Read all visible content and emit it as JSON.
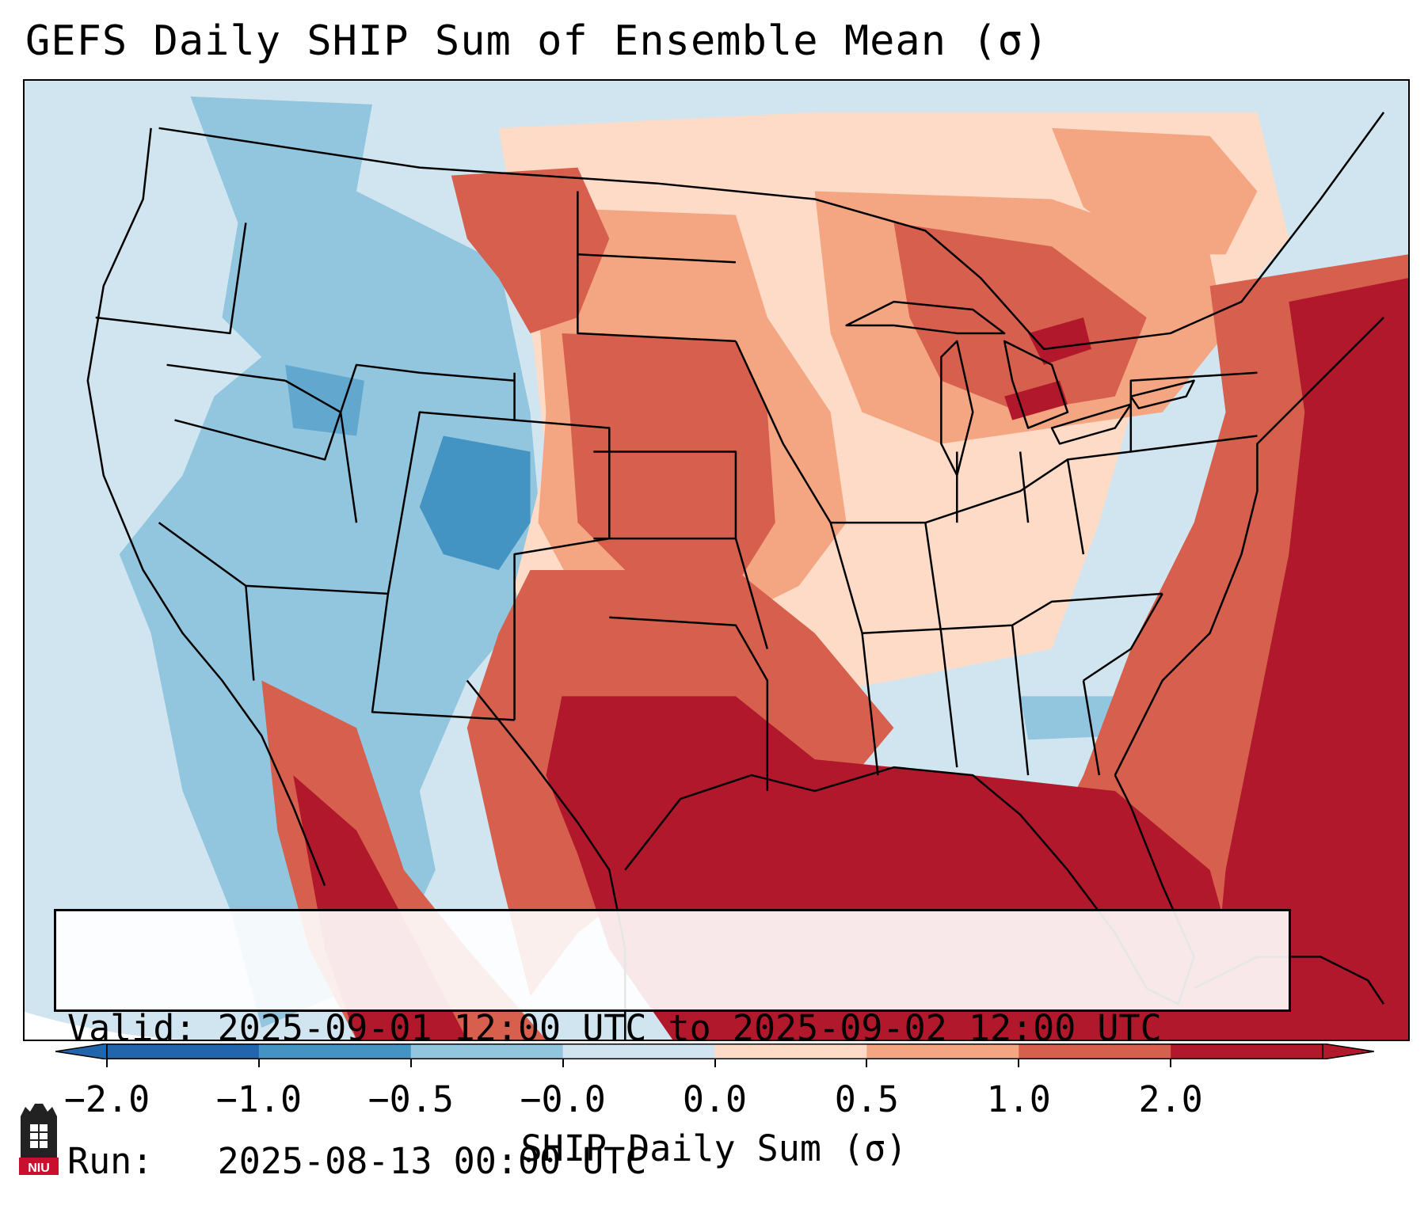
{
  "title": "GEFS Daily SHIP Sum of Ensemble Mean (σ)",
  "info": {
    "valid": "Valid: 2025-09-01 12:00 UTC to 2025-09-02 12:00 UTC",
    "run": "Run:   2025-08-13 00:00 UTC"
  },
  "colorbar": {
    "label": "SHIP Daily Sum (σ)",
    "ticks": [
      "−2.0",
      "−1.0",
      "−0.5",
      "−0.0",
      "0.0",
      "0.5",
      "1.0",
      "2.0"
    ],
    "bins": [
      "#2166ac",
      "#4393c3",
      "#92c5de",
      "#d1e5f0",
      "#fddbc7",
      "#f4a582",
      "#d6604d",
      "#b2182b"
    ],
    "extend_low_color": "#2166ac",
    "extend_high_color": "#b2182b"
  },
  "palette": {
    "strong_low": "#2166ac",
    "low": "#4393c3",
    "mid_low": "#92c5de",
    "near_neutral_low": "#d1e5f0",
    "near_neutral_high": "#fddbc7",
    "mid_high": "#f4a582",
    "high": "#d6604d",
    "strong_high": "#b2182b",
    "land_off_grid": "#ffffff"
  },
  "logo": {
    "text": "NIU"
  }
}
